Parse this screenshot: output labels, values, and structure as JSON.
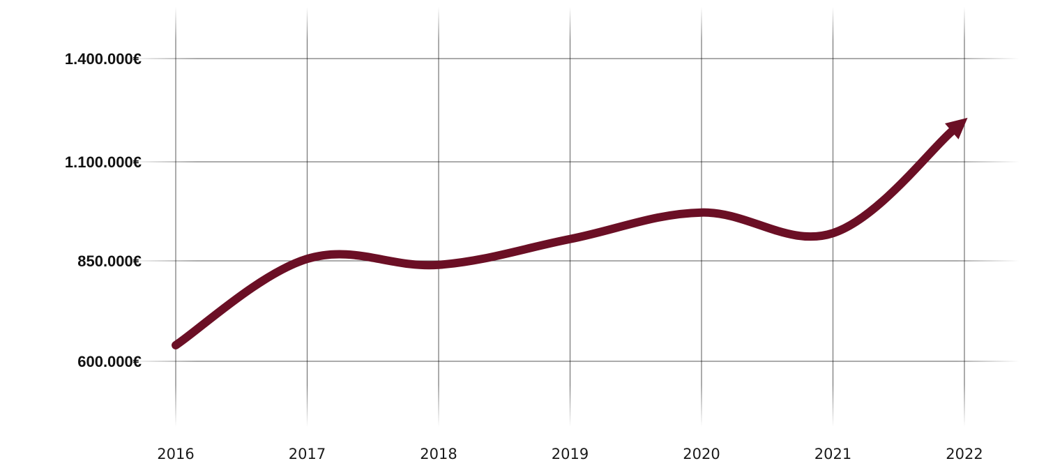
{
  "chart_data": {
    "type": "line",
    "title": "",
    "xlabel": "",
    "ylabel": "",
    "categories": [
      "2016",
      "2017",
      "2018",
      "2019",
      "2020",
      "2021",
      "2022"
    ],
    "series": [
      {
        "values": [
          640000,
          855000,
          840000,
          905000,
          972000,
          920000,
          1220000
        ],
        "color": "#6b0f25",
        "end_marker": "arrow"
      }
    ],
    "yticks": [
      600000,
      850000,
      1100000,
      1400000
    ],
    "ytick_labels": [
      "600.000€",
      "850.000€",
      "1.100.000€",
      "1.400.000€"
    ],
    "ylim": [
      510000,
      1520000
    ],
    "grid": true,
    "legend": "none"
  }
}
